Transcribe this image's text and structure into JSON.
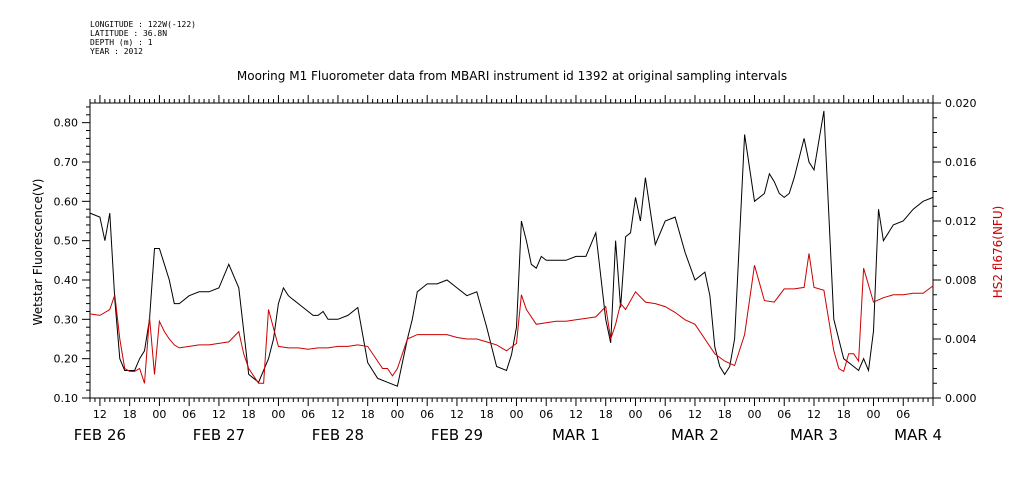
{
  "meta": {
    "longitude": "LONGITUDE : 122W(-122)",
    "latitude": "LATITUDE : 36.8N",
    "depth": "DEPTH (m) : 1",
    "year": "YEAR : 2012"
  },
  "chart_data": {
    "type": "line",
    "title": "Mooring M1 Fluorometer data from MBARI instrument id 1392 at original sampling intervals",
    "ylabel": "Wetstar Fluorescence(V)",
    "ylabel_right": "HS2 fl676(NFU)",
    "ylim": [
      0.1,
      0.85
    ],
    "ylim_right": [
      0.0,
      0.02
    ],
    "yticks": [
      "0.10",
      "0.20",
      "0.30",
      "0.40",
      "0.50",
      "0.60",
      "0.70",
      "0.80"
    ],
    "yticks_right": [
      "0.000",
      "0.004",
      "0.008",
      "0.012",
      "0.016",
      "0.020"
    ],
    "x_unit": "hours since FEB 26 00:00 (2012)",
    "xlim": [
      10,
      180
    ],
    "hour_ticks": [
      "12",
      "18",
      "00",
      "06",
      "12",
      "18",
      "00",
      "06",
      "12",
      "18",
      "00",
      "06",
      "12",
      "18",
      "00",
      "06",
      "12",
      "18",
      "00",
      "06",
      "12",
      "18",
      "00",
      "06",
      "12",
      "18",
      "00",
      "06"
    ],
    "day_labels": [
      "FEB 26",
      "FEB 27",
      "FEB 28",
      "FEB 29",
      "MAR  1",
      "MAR  2",
      "MAR  3",
      "MAR  4"
    ],
    "series": [
      {
        "name": "Wetstar Fluorescence(V)",
        "color": "#000000",
        "axis": "left",
        "x": [
          10,
          12,
          13,
          14,
          15,
          16,
          17,
          18,
          19,
          20,
          21,
          22,
          23,
          24,
          25,
          26,
          27,
          28,
          30,
          32,
          34,
          36,
          38,
          40,
          42,
          44,
          46,
          47,
          48,
          49,
          50,
          51,
          52,
          54,
          55,
          56,
          57,
          58,
          60,
          62,
          64,
          66,
          68,
          70,
          72,
          74,
          75,
          76,
          77,
          78,
          79,
          80,
          82,
          84,
          86,
          88,
          90,
          92,
          94,
          95,
          96,
          97,
          98,
          99,
          100,
          101,
          102,
          104,
          106,
          108,
          110,
          112,
          114,
          115,
          116,
          117,
          118,
          119,
          120,
          121,
          122,
          124,
          126,
          128,
          130,
          132,
          134,
          135,
          136,
          137,
          138,
          139,
          140,
          142,
          144,
          146,
          147,
          148,
          149,
          150,
          151,
          152,
          154,
          155,
          156,
          158,
          160,
          162,
          164,
          165,
          166,
          167,
          168,
          169,
          170,
          171,
          172,
          174,
          176,
          178,
          180
        ],
        "y": [
          0.57,
          0.56,
          0.5,
          0.57,
          0.35,
          0.2,
          0.17,
          0.17,
          0.17,
          0.2,
          0.22,
          0.3,
          0.48,
          0.48,
          0.44,
          0.4,
          0.34,
          0.34,
          0.36,
          0.37,
          0.37,
          0.38,
          0.44,
          0.38,
          0.16,
          0.14,
          0.2,
          0.25,
          0.34,
          0.38,
          0.36,
          0.35,
          0.34,
          0.32,
          0.31,
          0.31,
          0.32,
          0.3,
          0.3,
          0.31,
          0.33,
          0.19,
          0.15,
          0.14,
          0.13,
          0.25,
          0.3,
          0.37,
          0.38,
          0.39,
          0.39,
          0.39,
          0.4,
          0.38,
          0.36,
          0.37,
          0.28,
          0.18,
          0.17,
          0.21,
          0.28,
          0.55,
          0.5,
          0.44,
          0.43,
          0.46,
          0.45,
          0.45,
          0.45,
          0.46,
          0.46,
          0.52,
          0.3,
          0.24,
          0.5,
          0.33,
          0.51,
          0.52,
          0.61,
          0.55,
          0.66,
          0.49,
          0.55,
          0.56,
          0.47,
          0.4,
          0.42,
          0.36,
          0.23,
          0.18,
          0.16,
          0.18,
          0.25,
          0.77,
          0.6,
          0.62,
          0.67,
          0.65,
          0.62,
          0.61,
          0.62,
          0.66,
          0.76,
          0.7,
          0.68,
          0.83,
          0.3,
          0.2,
          0.18,
          0.17,
          0.2,
          0.17,
          0.27,
          0.58,
          0.5,
          0.52,
          0.54,
          0.55,
          0.58,
          0.6,
          0.61
        ]
      },
      {
        "name": "HS2 fl676(NFU)",
        "color": "#cc0000",
        "axis": "right",
        "x": [
          10,
          12,
          14,
          15,
          16,
          17,
          18,
          19,
          20,
          21,
          22,
          23,
          24,
          25,
          26,
          27,
          28,
          30,
          32,
          34,
          36,
          38,
          40,
          41,
          42,
          43,
          44,
          45,
          46,
          48,
          50,
          52,
          54,
          56,
          58,
          60,
          62,
          64,
          66,
          68,
          69,
          70,
          71,
          72,
          74,
          76,
          78,
          80,
          82,
          84,
          86,
          88,
          90,
          92,
          94,
          96,
          97,
          98,
          100,
          102,
          104,
          106,
          108,
          110,
          112,
          114,
          115,
          116,
          117,
          118,
          120,
          122,
          124,
          126,
          128,
          130,
          132,
          134,
          136,
          138,
          140,
          142,
          144,
          146,
          148,
          150,
          152,
          154,
          155,
          156,
          158,
          160,
          161,
          162,
          163,
          164,
          165,
          166,
          168,
          170,
          172,
          174,
          176,
          178,
          180
        ],
        "y": [
          0.0057,
          0.0056,
          0.006,
          0.007,
          0.004,
          0.002,
          0.0018,
          0.0018,
          0.002,
          0.001,
          0.0055,
          0.0016,
          0.0052,
          0.0045,
          0.004,
          0.0036,
          0.0034,
          0.0035,
          0.0036,
          0.0036,
          0.0037,
          0.0038,
          0.0045,
          0.003,
          0.002,
          0.0015,
          0.001,
          0.001,
          0.006,
          0.0035,
          0.0034,
          0.0034,
          0.0033,
          0.0034,
          0.0034,
          0.0035,
          0.0035,
          0.0036,
          0.0035,
          0.0025,
          0.002,
          0.002,
          0.0015,
          0.002,
          0.004,
          0.0043,
          0.0043,
          0.0043,
          0.0043,
          0.0041,
          0.004,
          0.004,
          0.0038,
          0.0036,
          0.0032,
          0.0037,
          0.007,
          0.006,
          0.005,
          0.0051,
          0.0052,
          0.0052,
          0.0053,
          0.0054,
          0.0055,
          0.0062,
          0.004,
          0.005,
          0.0064,
          0.006,
          0.0072,
          0.0065,
          0.0064,
          0.0062,
          0.0058,
          0.0053,
          0.005,
          0.004,
          0.003,
          0.0025,
          0.0022,
          0.0043,
          0.009,
          0.0066,
          0.0065,
          0.0074,
          0.0074,
          0.0075,
          0.0098,
          0.0075,
          0.0073,
          0.0032,
          0.002,
          0.0018,
          0.003,
          0.003,
          0.0025,
          0.0088,
          0.0065,
          0.0068,
          0.007,
          0.007,
          0.0071,
          0.0071,
          0.0076
        ]
      }
    ]
  }
}
